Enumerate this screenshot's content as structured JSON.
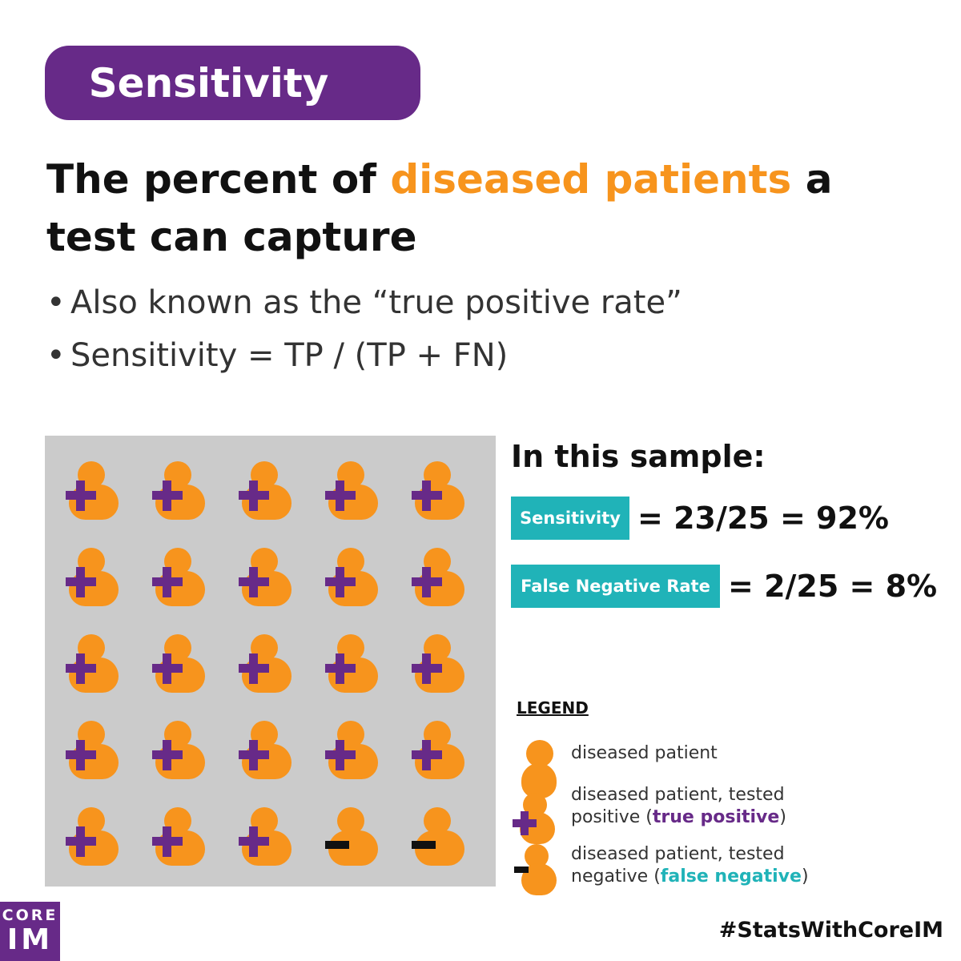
{
  "title": "Sensitivity",
  "headline": {
    "before": "The percent of ",
    "highlight": "diseased patients",
    "after": " a test can capture"
  },
  "bullets": [
    "Also known as the “true positive rate”",
    "Sensitivity = TP / (TP + FN)"
  ],
  "grid": {
    "total_patients": 25,
    "true_positive_count": 23,
    "false_negative_count": 2,
    "results": [
      "+",
      "+",
      "+",
      "+",
      "+",
      "+",
      "+",
      "+",
      "+",
      "+",
      "+",
      "+",
      "+",
      "+",
      "+",
      "+",
      "+",
      "+",
      "+",
      "+",
      "+",
      "+",
      "+",
      "-",
      "-"
    ]
  },
  "sample": {
    "title": "In this sample:",
    "sensitivity_label": "Sensitivity",
    "sensitivity_value": "= 23/25 = 92%",
    "fnr_label": "False Negative Rate",
    "fnr_value": "= 2/25 = 8%"
  },
  "legend": {
    "title": "LEGEND",
    "item1": "diseased patient",
    "item2_line1": "diseased patient, tested",
    "item2_pre": "positive (",
    "item2_bold": "true positive",
    "item2_post": ")",
    "item3_line1": "diseased patient, tested",
    "item3_pre": "negative (",
    "item3_bold": "false negative",
    "item3_post": ")"
  },
  "logo": {
    "line1": "CORE",
    "line2": "IM"
  },
  "hashtag": "#StatsWithCoreIM",
  "colors": {
    "purple": "#672a88",
    "orange": "#f7941d",
    "teal": "#20b3b8",
    "grid_background": "#cbcbcb"
  },
  "icons": [
    "patient-icon",
    "plus-icon",
    "minus-icon"
  ]
}
